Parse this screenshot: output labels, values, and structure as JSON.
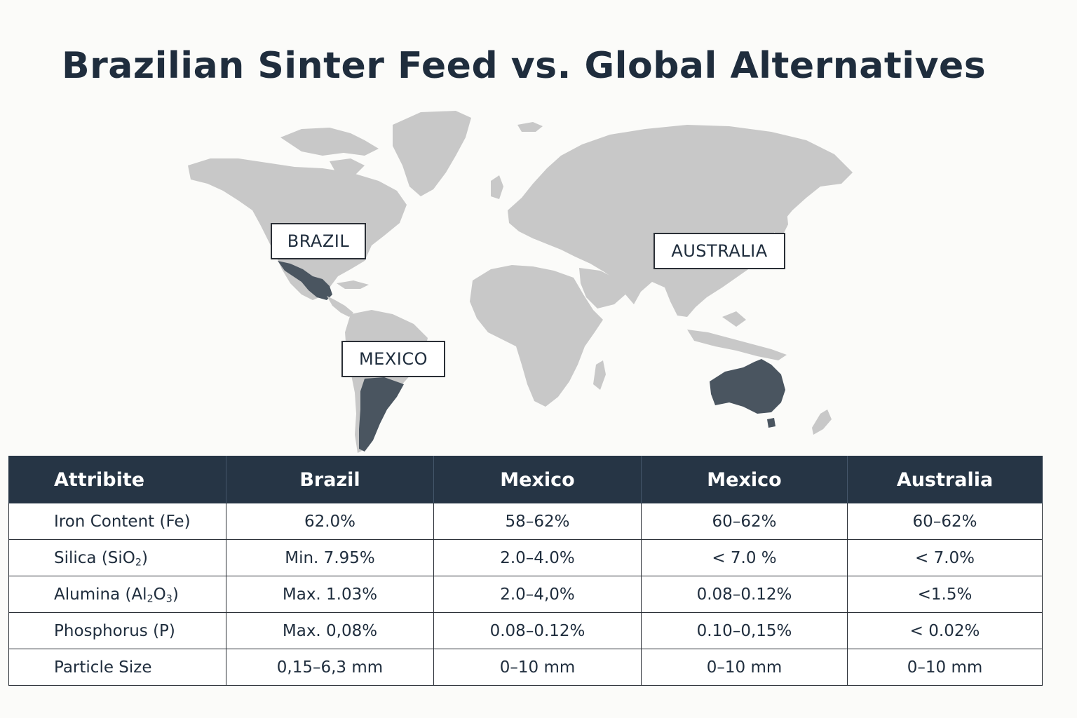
{
  "title": "Brazilian Sinter Feed vs. Global Alternatives",
  "map": {
    "labels": {
      "brazil": "BRAZIL",
      "australia": "AUSTRALIA",
      "mexico": "MEXICO"
    },
    "colors": {
      "land": "#c8c8c8",
      "highlight": "#4a5560"
    }
  },
  "table": {
    "headers": [
      "Attribite",
      "Brazil",
      "Mexico",
      "Mexico",
      "Australia"
    ],
    "rows": [
      {
        "attr": "Iron Content (Fe)",
        "values": [
          "62.0%",
          "58–62%",
          "60–62%",
          "60–62%"
        ]
      },
      {
        "attr_base": "Silica (SiO",
        "attr_sub": "2",
        "attr_end": ")",
        "values": [
          "Min. 7.95%",
          "2.0–4.0%",
          "< 7.0 %",
          "< 7.0%"
        ]
      },
      {
        "attr_base": "Alumina (Al",
        "attr_sub": "2",
        "attr_mid": "O",
        "attr_sub2": "3",
        "attr_end": ")",
        "values": [
          "Max. 1.03%",
          "2.0–4,0%",
          "0.08–0.12%",
          "<1.5%"
        ]
      },
      {
        "attr": "Phosphorus (P)",
        "values": [
          "Max. 0,08%",
          "0.08–0.12%",
          "0.10–0,15%",
          "< 0.02%"
        ]
      },
      {
        "attr": "Particle Size",
        "values": [
          "0,15–6,3 mm",
          "0–10 mm",
          "0–10 mm",
          "0–10 mm"
        ]
      }
    ],
    "colors": {
      "header_bg": "#263545",
      "header_text": "#ffffff",
      "border": "#2a2f36"
    }
  }
}
